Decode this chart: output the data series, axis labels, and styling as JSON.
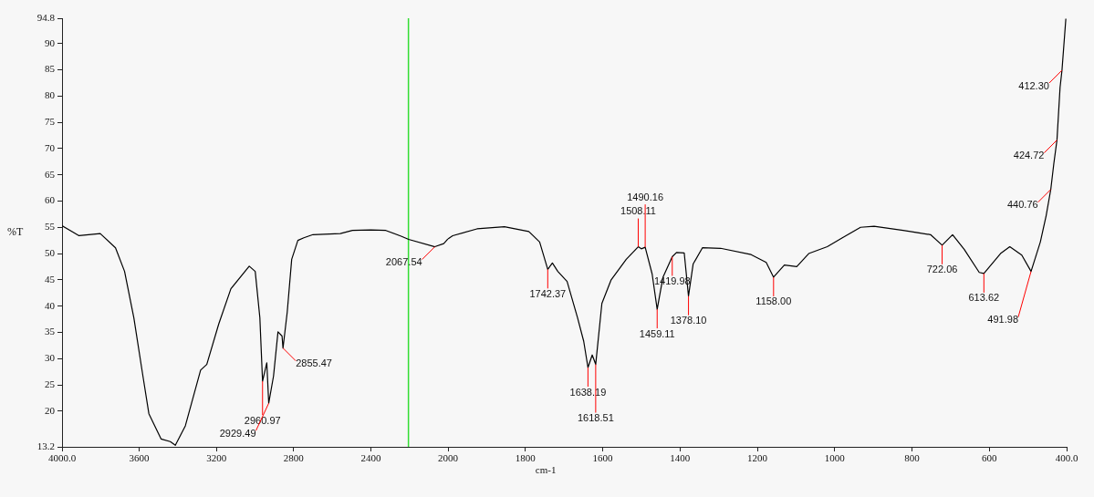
{
  "chart_data": [
    {
      "type": "line",
      "ylabel": "%T",
      "color": "#000000",
      "marker": "none",
      "x": [
        4000,
        3912,
        3802,
        3723,
        3676,
        3628,
        3581,
        3550,
        3487,
        3439,
        3413,
        3361,
        3282,
        3250,
        3188,
        3125,
        3030,
        2999,
        2975,
        2961,
        2939,
        2929,
        2904,
        2881,
        2860,
        2855,
        2833,
        2810,
        2778,
        2747,
        2700,
        2558,
        2495,
        2400,
        2322,
        2243,
        2204,
        2068,
        2022,
        2000
      ],
      "values": [
        55.3,
        53.4,
        53.8,
        51.1,
        46.6,
        37.8,
        26.7,
        19.5,
        14.7,
        14.2,
        13.5,
        17.2,
        27.8,
        28.9,
        36.6,
        43.3,
        47.6,
        46.6,
        37.8,
        25.7,
        29.2,
        21.5,
        26.7,
        35.1,
        34.3,
        32.0,
        38.9,
        48.9,
        52.5,
        53.0,
        53.6,
        53.8,
        54.4,
        54.5,
        54.4,
        53.3,
        52.7,
        51.3,
        51.9,
        52.8
      ],
      "xlim": [
        4000,
        2000
      ],
      "xticks": [
        {
          "value": 4000,
          "label": "4000.0"
        },
        3600,
        3200,
        2800,
        2400,
        2000
      ],
      "ylim": [
        13.2,
        94.8
      ],
      "yticks": [
        13.2,
        20,
        25,
        30,
        35,
        40,
        45,
        50,
        55,
        60,
        65,
        70,
        75,
        80,
        85,
        90,
        94.8
      ],
      "ref_lines": [
        {
          "axis": "x",
          "value": 2205,
          "color": "#33dd33"
        }
      ],
      "annotations": [
        {
          "text": "2960.97",
          "x": 2961,
          "y": 25.7
        },
        {
          "text": "2929.49",
          "x": 2929,
          "y": 21.5
        },
        {
          "text": "2855.47",
          "x": 2855,
          "y": 32.0
        },
        {
          "text": "2067.54",
          "x": 2068,
          "y": 51.3
        }
      ]
    },
    {
      "type": "line",
      "xlabel": "cm-1",
      "color": "#000000",
      "marker": "none",
      "tick_labels": "x",
      "x": [
        2000,
        1988,
        1925,
        1854,
        1791,
        1763,
        1742,
        1730,
        1716,
        1692,
        1665,
        1649,
        1638,
        1627,
        1618,
        1602,
        1578,
        1539,
        1508,
        1500,
        1490,
        1472,
        1459,
        1444,
        1420,
        1409,
        1389,
        1378,
        1366,
        1342,
        1295,
        1216,
        1177,
        1158,
        1130,
        1098,
        1067,
        1019,
        980,
        933,
        898,
        823,
        752,
        722,
        695,
        665,
        626,
        614,
        571,
        547,
        516,
        492,
        468,
        453,
        441,
        433,
        425,
        417,
        412,
        402
      ],
      "values": [
        52.8,
        53.4,
        54.7,
        55.1,
        54.2,
        52.2,
        47.0,
        48.2,
        46.6,
        44.7,
        37.8,
        33.3,
        28.3,
        30.7,
        28.9,
        40.5,
        45.0,
        48.9,
        51.3,
        50.9,
        51.2,
        46.1,
        39.4,
        45.5,
        49.4,
        50.2,
        50.1,
        41.9,
        48.0,
        51.1,
        51.0,
        49.8,
        48.3,
        45.5,
        47.8,
        47.5,
        50.0,
        51.3,
        53.0,
        55.0,
        55.2,
        54.4,
        53.6,
        51.6,
        53.6,
        50.8,
        46.4,
        46.2,
        50.0,
        51.3,
        49.7,
        46.6,
        52.2,
        57.2,
        62.2,
        67.2,
        71.6,
        81.6,
        84.9,
        94.7
      ],
      "xlim": [
        2000,
        400
      ],
      "xticks": [
        1800,
        1600,
        1400,
        1200,
        1000,
        800,
        600,
        {
          "value": 400,
          "label": "400.0"
        }
      ],
      "ylim": [
        13.2,
        94.8
      ],
      "yticks": [
        13.2,
        20,
        25,
        30,
        35,
        40,
        45,
        50,
        55,
        60,
        65,
        70,
        75,
        80,
        85,
        90,
        94.8
      ],
      "annotations": [
        {
          "text": "1742.37",
          "x": 1742,
          "y": 47.0
        },
        {
          "text": "1638.19",
          "x": 1638,
          "y": 28.3
        },
        {
          "text": "1618.51",
          "x": 1618,
          "y": 28.9
        },
        {
          "text": "1508.11",
          "x": 1508,
          "y": 51.3
        },
        {
          "text": "1490.16",
          "x": 1490,
          "y": 51.2
        },
        {
          "text": "1459.11",
          "x": 1459,
          "y": 39.4
        },
        {
          "text": "1419.98",
          "x": 1420,
          "y": 49.4
        },
        {
          "text": "1378.10",
          "x": 1378,
          "y": 41.9
        },
        {
          "text": "1158.00",
          "x": 1158,
          "y": 45.5
        },
        {
          "text": "722.06",
          "x": 722,
          "y": 51.6
        },
        {
          "text": "613.62",
          "x": 614,
          "y": 46.2
        },
        {
          "text": "491.98",
          "x": 492,
          "y": 46.6
        },
        {
          "text": "440.76",
          "x": 441,
          "y": 62.2
        },
        {
          "text": "424.72",
          "x": 425,
          "y": 71.6
        },
        {
          "text": "412.30",
          "x": 412,
          "y": 84.9
        }
      ]
    }
  ]
}
